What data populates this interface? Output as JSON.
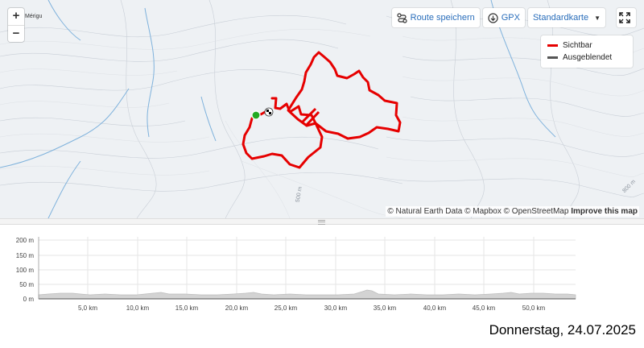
{
  "map": {
    "zoom_in_label": "+",
    "zoom_out_label": "−",
    "place_label": "Mérigu",
    "contour_labels": [
      "500 m",
      "800 m"
    ],
    "toolbar": {
      "save_route_label": "Route speichern",
      "gpx_label": "GPX",
      "map_style_label": "Standardkarte"
    },
    "legend": {
      "items": [
        {
          "label": "Sichtbar",
          "color": "#e60000"
        },
        {
          "label": "Ausgeblendet",
          "color": "#555555"
        }
      ]
    },
    "attribution": {
      "text": "© Natural Earth Data © Mapbox © OpenStreetMap",
      "link": "Improve this map"
    },
    "colors": {
      "route": "#e60000",
      "start_marker": "#22aa22",
      "water": "#7fb2dc",
      "accent": "#2a6ebb"
    }
  },
  "profile": {
    "y_ticks": [
      "200 m",
      "150 m",
      "100 m",
      "50 m",
      "0 m"
    ],
    "x_ticks": [
      "5,0 km",
      "10,0 km",
      "15,0 km",
      "20,0 km",
      "25,0 km",
      "30,0 km",
      "35,0 km",
      "40,0 km",
      "45,0 km",
      "50,0 km"
    ]
  },
  "footer": {
    "date": "Donnerstag, 24.07.2025"
  }
}
